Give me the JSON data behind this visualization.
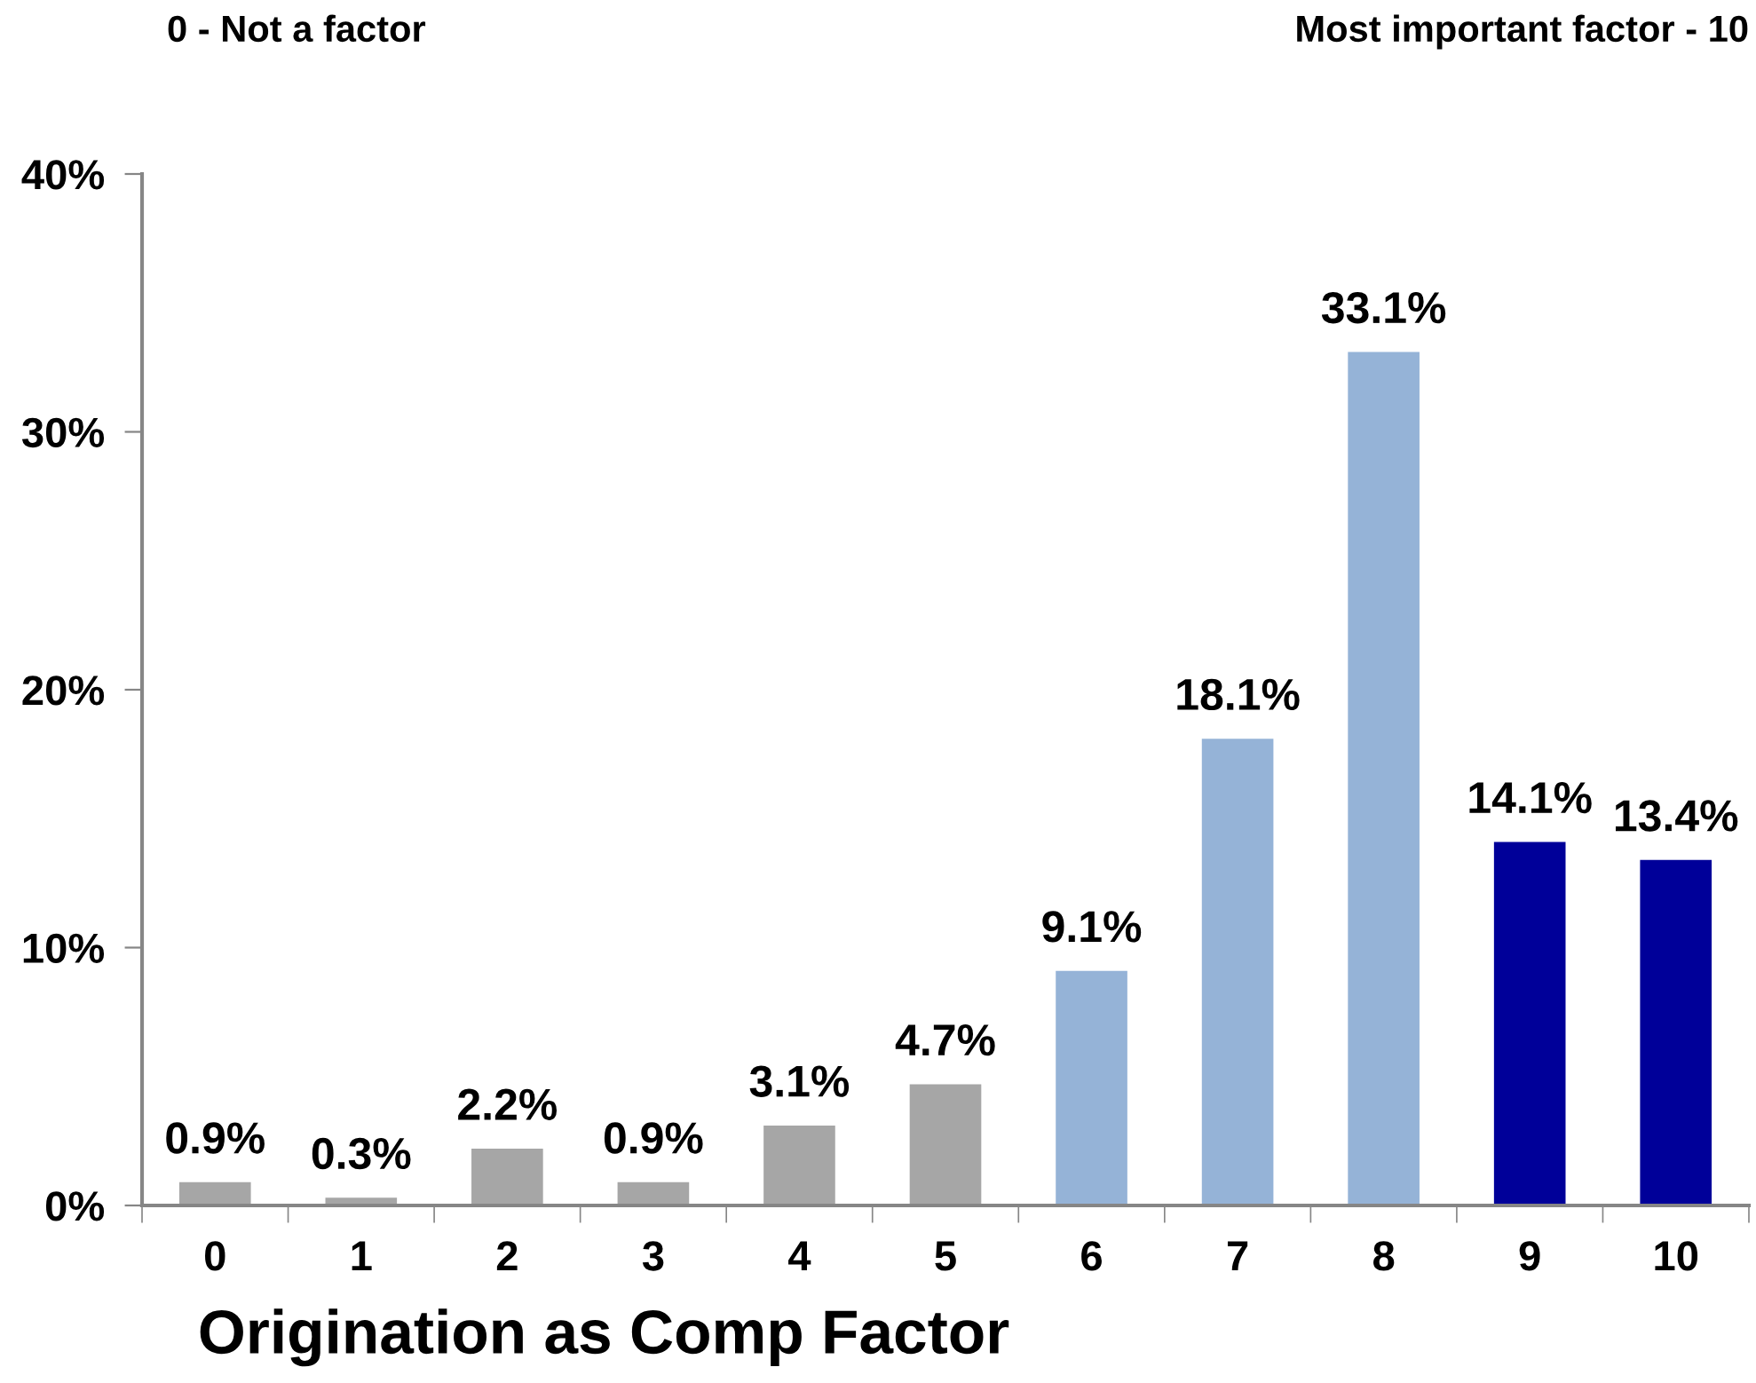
{
  "chart_data": {
    "type": "bar",
    "xlabel": "Origination as Comp Factor",
    "annotations": [
      "0 - Not a factor",
      "Most important factor - 10"
    ],
    "categories": [
      "0",
      "1",
      "2",
      "3",
      "4",
      "5",
      "6",
      "7",
      "8",
      "9",
      "10"
    ],
    "values": [
      0.9,
      0.3,
      2.2,
      0.9,
      3.1,
      4.7,
      9.1,
      18.1,
      33.1,
      14.1,
      13.4
    ],
    "colors": [
      "#a6a6a6",
      "#a6a6a6",
      "#a6a6a6",
      "#a6a6a6",
      "#a6a6a6",
      "#a6a6a6",
      "#95b3d7",
      "#95b3d7",
      "#95b3d7",
      "#000099",
      "#000099"
    ],
    "value_labels": [
      "0.9%",
      "0.3%",
      "2.2%",
      "0.9%",
      "3.1%",
      "4.7%",
      "9.1%",
      "18.1%",
      "33.1%",
      "14.1%",
      "13.4%"
    ],
    "ylim": [
      0,
      40
    ],
    "yticks": [
      {
        "value": 0,
        "label": "0%"
      },
      {
        "value": 10,
        "label": "10%"
      },
      {
        "value": 20,
        "label": "20%"
      },
      {
        "value": 30,
        "label": "30%"
      },
      {
        "value": 40,
        "label": "40%"
      }
    ],
    "grid": false
  }
}
